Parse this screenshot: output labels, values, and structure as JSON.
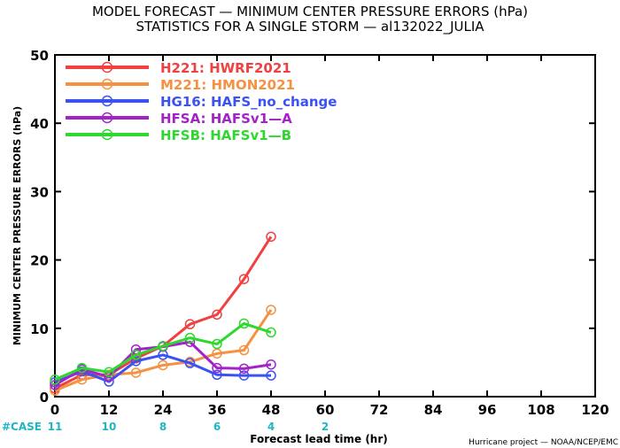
{
  "title_line1": "MODEL FORECAST — MINIMUM CENTER PRESSURE ERRORS (hPa)",
  "title_line2": "STATISTICS FOR A SINGLE STORM — al132022_JULIA",
  "credit": "Hurricane project — NOAA/NCEP/EMC",
  "case_label": "#CASE",
  "case_counts": [
    {
      "x": 0,
      "label": "11"
    },
    {
      "x": 12,
      "label": "10"
    },
    {
      "x": 24,
      "label": "8"
    },
    {
      "x": 36,
      "label": "6"
    },
    {
      "x": 48,
      "label": "4"
    },
    {
      "x": 60,
      "label": "2"
    }
  ],
  "chart_data": {
    "type": "line",
    "xlabel": "Forecast lead time (hr)",
    "ylabel": "MINIMUM CENTER PRESSURE ERRORS (hPa)",
    "xlim": [
      0,
      120
    ],
    "ylim": [
      0,
      50
    ],
    "xticks": [
      0,
      12,
      24,
      36,
      48,
      60,
      72,
      84,
      96,
      108,
      120
    ],
    "yticks": [
      0,
      10,
      20,
      30,
      40,
      50
    ],
    "legend_position": "top-left",
    "series": [
      {
        "name": "H221: HWRF2021",
        "color": "#f04040",
        "x": [
          0,
          6,
          12,
          18,
          24,
          30,
          36,
          42,
          48
        ],
        "values": [
          1.2,
          3.2,
          3.2,
          5.6,
          7.4,
          10.6,
          12.0,
          17.2,
          23.4
        ]
      },
      {
        "name": "M221: HMON2021",
        "color": "#f59140",
        "x": [
          0,
          6,
          12,
          18,
          24,
          30,
          36,
          42,
          48
        ],
        "values": [
          0.9,
          2.5,
          3.2,
          3.5,
          4.6,
          5.1,
          6.3,
          6.8,
          12.7
        ]
      },
      {
        "name": "HG16: HAFS_no_change",
        "color": "#3a52f2",
        "x": [
          0,
          6,
          12,
          18,
          24,
          30,
          36,
          42,
          48
        ],
        "values": [
          2.1,
          3.7,
          2.2,
          5.2,
          6.1,
          4.9,
          3.2,
          3.1,
          3.1
        ]
      },
      {
        "name": "HFSA: HAFSv1—A",
        "color": "#a323c8",
        "x": [
          0,
          6,
          12,
          18,
          24,
          30,
          36,
          42,
          48
        ],
        "values": [
          1.7,
          4.0,
          2.9,
          6.9,
          7.3,
          8.0,
          4.2,
          4.1,
          4.7
        ]
      },
      {
        "name": "HFSB: HAFSv1—B",
        "color": "#2ed82e",
        "x": [
          0,
          6,
          12,
          18,
          24,
          30,
          36,
          42,
          48
        ],
        "values": [
          2.5,
          4.2,
          3.6,
          6.1,
          7.4,
          8.6,
          7.7,
          10.7,
          9.4
        ]
      }
    ]
  }
}
